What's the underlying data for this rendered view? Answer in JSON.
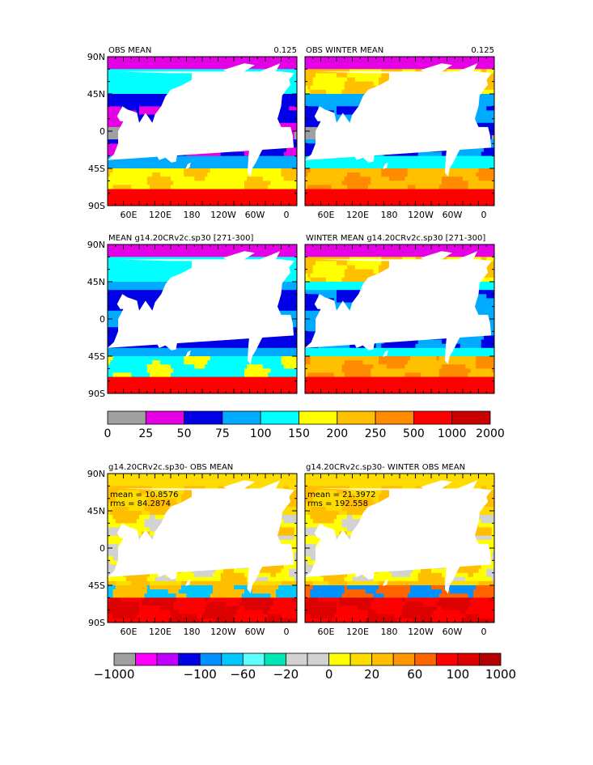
{
  "lat_labels": [
    "90N",
    "45N",
    "0",
    "45S",
    "90S"
  ],
  "lon_labels": [
    "60E",
    "120E",
    "180",
    "120W",
    "60W",
    "0"
  ],
  "panels": [
    {
      "title": "OBS MEAN",
      "value": "0.125",
      "scheme": "abs",
      "pattern": "obs"
    },
    {
      "title": "OBS WINTER MEAN",
      "value": "0.125",
      "scheme": "abs",
      "pattern": "obsw"
    },
    {
      "title": "MEAN g14.20CRv2c.sp30 [271-300]",
      "value": "",
      "scheme": "abs",
      "pattern": "mod"
    },
    {
      "title": "WINTER MEAN g14.20CRv2c.sp30 [271-300]",
      "value": "",
      "scheme": "abs",
      "pattern": "modw"
    },
    {
      "title": "g14.20CRv2c.sp30- OBS MEAN",
      "value": "",
      "scheme": "diff",
      "pattern": "diff",
      "mean_text": "mean = 10.8576",
      "rms_text": "rms = 84.2874"
    },
    {
      "title": "g14.20CRv2c.sp30- WINTER OBS MEAN",
      "value": "",
      "scheme": "diff",
      "pattern": "diffw",
      "mean_text": "mean = 21.3972",
      "rms_text": "rms = 192.558"
    }
  ],
  "colorbar1": {
    "colors": [
      "#a0a0a0",
      "#e600e6",
      "#0000e6",
      "#00aaff",
      "#00ffff",
      "#ffff00",
      "#ffc000",
      "#ff8c00",
      "#ff0000",
      "#c80000"
    ],
    "labels": [
      "0",
      "25",
      "50",
      "75",
      "100",
      "150",
      "200",
      "250",
      "500",
      "1000",
      "2000"
    ]
  },
  "colorbar2": {
    "colors": [
      "#a0a0a0",
      "#ff00ff",
      "#c000ff",
      "#0000e6",
      "#0090ff",
      "#00c8ff",
      "#60ffff",
      "#00e6b4",
      "#d2d2d2",
      "#d2d2d2",
      "#ffff00",
      "#ffdc00",
      "#ffbe00",
      "#ff9600",
      "#ff6400",
      "#ff0000",
      "#dc0000",
      "#b40000"
    ],
    "labels": [
      "−1000",
      "",
      "−100",
      "−60",
      "−20",
      "0",
      "20",
      "60",
      "100",
      "1000"
    ]
  }
}
